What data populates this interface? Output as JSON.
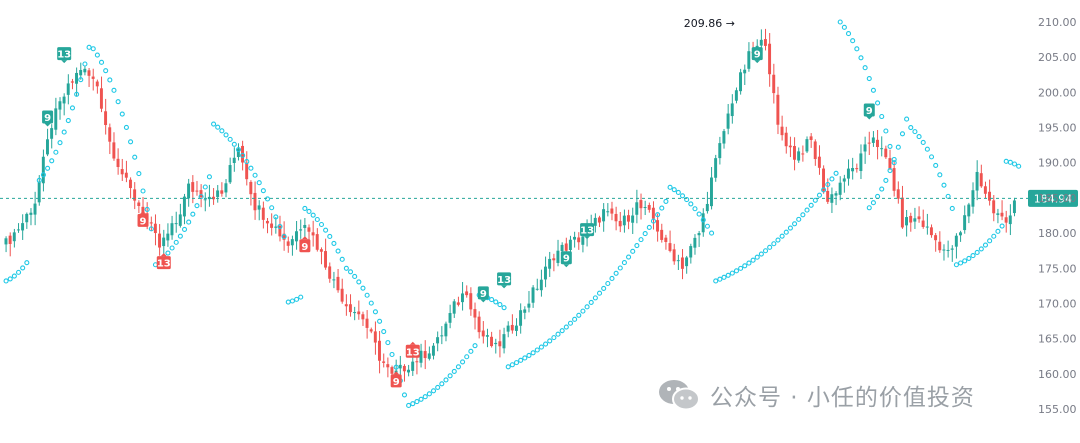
{
  "chart_data": {
    "type": "candlestick",
    "ylim": [
      155,
      212
    ],
    "y_ticks": [
      155,
      160,
      165,
      170,
      175,
      180,
      185,
      190,
      195,
      200,
      205,
      210
    ],
    "y_tick_labels": [
      "155.00",
      "160.00",
      "165.00",
      "170.00",
      "175.00",
      "180.00",
      "185.00",
      "190.00",
      "195.00",
      "200.00",
      "205.00",
      "210.00"
    ],
    "current_price": 184.94,
    "current_price_label": "184.94",
    "high_annotation": {
      "value": 209.86,
      "label": "209.86 →"
    },
    "colors": {
      "up": "#26a69a",
      "down": "#ef5350",
      "sar": "#1ec8e6",
      "price_line": "#26a69a"
    },
    "candle_anchors": [
      {
        "i": 0,
        "v": 178.5
      },
      {
        "i": 4,
        "v": 181.5
      },
      {
        "i": 7,
        "v": 184.5
      },
      {
        "i": 11,
        "v": 195.5
      },
      {
        "i": 14,
        "v": 199.5
      },
      {
        "i": 18,
        "v": 203.5
      },
      {
        "i": 22,
        "v": 201
      },
      {
        "i": 25,
        "v": 193
      },
      {
        "i": 29,
        "v": 187
      },
      {
        "i": 33,
        "v": 183
      },
      {
        "i": 37,
        "v": 178
      },
      {
        "i": 41,
        "v": 181.5
      },
      {
        "i": 44,
        "v": 186.5
      },
      {
        "i": 48,
        "v": 185.5
      },
      {
        "i": 52,
        "v": 185.5
      },
      {
        "i": 56,
        "v": 192.5
      },
      {
        "i": 60,
        "v": 184
      },
      {
        "i": 64,
        "v": 181.5
      },
      {
        "i": 68,
        "v": 178.5
      },
      {
        "i": 72,
        "v": 182
      },
      {
        "i": 76,
        "v": 177
      },
      {
        "i": 79,
        "v": 173
      },
      {
        "i": 82,
        "v": 170
      },
      {
        "i": 86,
        "v": 168
      },
      {
        "i": 90,
        "v": 162.5
      },
      {
        "i": 93,
        "v": 159.5
      },
      {
        "i": 96,
        "v": 161
      },
      {
        "i": 100,
        "v": 162.5
      },
      {
        "i": 104,
        "v": 164.5
      },
      {
        "i": 108,
        "v": 169.5
      },
      {
        "i": 111,
        "v": 172
      },
      {
        "i": 114,
        "v": 166
      },
      {
        "i": 118,
        "v": 163.5
      },
      {
        "i": 121,
        "v": 166
      },
      {
        "i": 125,
        "v": 169.5
      },
      {
        "i": 129,
        "v": 173.5
      },
      {
        "i": 132,
        "v": 177
      },
      {
        "i": 136,
        "v": 178.5
      },
      {
        "i": 140,
        "v": 180
      },
      {
        "i": 144,
        "v": 183
      },
      {
        "i": 148,
        "v": 181
      },
      {
        "i": 152,
        "v": 184
      },
      {
        "i": 156,
        "v": 182
      },
      {
        "i": 159,
        "v": 178
      },
      {
        "i": 163,
        "v": 175.5
      },
      {
        "i": 167,
        "v": 180
      },
      {
        "i": 171,
        "v": 190
      },
      {
        "i": 175,
        "v": 199
      },
      {
        "i": 179,
        "v": 205
      },
      {
        "i": 183,
        "v": 207.5
      },
      {
        "i": 186,
        "v": 195
      },
      {
        "i": 190,
        "v": 191
      },
      {
        "i": 194,
        "v": 193
      },
      {
        "i": 198,
        "v": 184.5
      },
      {
        "i": 202,
        "v": 188
      },
      {
        "i": 205,
        "v": 189.5
      },
      {
        "i": 209,
        "v": 194
      },
      {
        "i": 213,
        "v": 189
      },
      {
        "i": 216,
        "v": 181.5
      },
      {
        "i": 220,
        "v": 182
      },
      {
        "i": 224,
        "v": 179
      },
      {
        "i": 227,
        "v": 177
      },
      {
        "i": 230,
        "v": 180
      },
      {
        "i": 234,
        "v": 188.5
      },
      {
        "i": 238,
        "v": 183
      },
      {
        "i": 241,
        "v": 181.5
      },
      {
        "i": 243,
        "v": 184.9
      }
    ],
    "sar_segments": [
      {
        "i0": 0,
        "i1": 5,
        "v0": 173.2,
        "v1": 175.8
      },
      {
        "i0": 8,
        "i1": 20,
        "v0": 187.5,
        "v1": 206.4
      },
      {
        "i0": 21,
        "i1": 35,
        "v0": 206.2,
        "v1": 180.6
      },
      {
        "i0": 36,
        "i1": 49,
        "v0": 175.5,
        "v1": 188.0
      },
      {
        "i0": 50,
        "i1": 67,
        "v0": 195.5,
        "v1": 179.5
      },
      {
        "i0": 68,
        "i1": 71,
        "v0": 170.2,
        "v1": 170.9
      },
      {
        "i0": 72,
        "i1": 82,
        "v0": 183.5,
        "v1": 175.0
      },
      {
        "i0": 83,
        "i1": 96,
        "v0": 174.5,
        "v1": 157.0
      },
      {
        "i0": 97,
        "i1": 113,
        "v0": 155.5,
        "v1": 164.0
      },
      {
        "i0": 114,
        "i1": 120,
        "v0": 171.2,
        "v1": 169.4
      },
      {
        "i0": 121,
        "i1": 159,
        "v0": 161.0,
        "v1": 184.5
      },
      {
        "i0": 160,
        "i1": 170,
        "v0": 186.5,
        "v1": 180.0
      },
      {
        "i0": 171,
        "i1": 200,
        "v0": 173.2,
        "v1": 188.5
      },
      {
        "i0": 201,
        "i1": 214,
        "v0": 210.0,
        "v1": 190.0
      },
      {
        "i0": 208,
        "i1": 217,
        "v0": 183.6,
        "v1": 196.2
      },
      {
        "i0": 218,
        "i1": 228,
        "v0": 195.0,
        "v1": 183.5
      },
      {
        "i0": 229,
        "i1": 240,
        "v0": 175.5,
        "v1": 181.0
      },
      {
        "i0": 241,
        "i1": 244,
        "v0": 190.2,
        "v1": 189.5
      }
    ],
    "markers": [
      {
        "i": 14,
        "label": "13",
        "color": "#26a69a",
        "pos": "above",
        "v": 205.5
      },
      {
        "i": 10,
        "label": "9",
        "color": "#26a69a",
        "pos": "above",
        "v": 196.5
      },
      {
        "i": 33,
        "label": "9",
        "color": "#ef5350",
        "pos": "below",
        "v": 181.8
      },
      {
        "i": 38,
        "label": "13",
        "color": "#ef5350",
        "pos": "below",
        "v": 175.8
      },
      {
        "i": 72,
        "label": "9",
        "color": "#ef5350",
        "pos": "below",
        "v": 178.2
      },
      {
        "i": 94,
        "label": "9",
        "color": "#ef5350",
        "pos": "below",
        "v": 159.0
      },
      {
        "i": 98,
        "label": "13",
        "color": "#ef5350",
        "pos": "below",
        "v": 163.2
      },
      {
        "i": 115,
        "label": "9",
        "color": "#26a69a",
        "pos": "above",
        "v": 171.5
      },
      {
        "i": 120,
        "label": "13",
        "color": "#26a69a",
        "pos": "above",
        "v": 173.5
      },
      {
        "i": 135,
        "label": "9",
        "color": "#26a69a",
        "pos": "above",
        "v": 176.5
      },
      {
        "i": 140,
        "label": "13",
        "color": "#26a69a",
        "pos": "above",
        "v": 180.5
      },
      {
        "i": 181,
        "label": "9",
        "color": "#26a69a",
        "pos": "above",
        "v": 205.5
      },
      {
        "i": 208,
        "label": "9",
        "color": "#26a69a",
        "pos": "above",
        "v": 197.5
      }
    ]
  },
  "watermark": {
    "text": "公众号 · 小任的价值投资",
    "icon": "wechat-icon"
  }
}
